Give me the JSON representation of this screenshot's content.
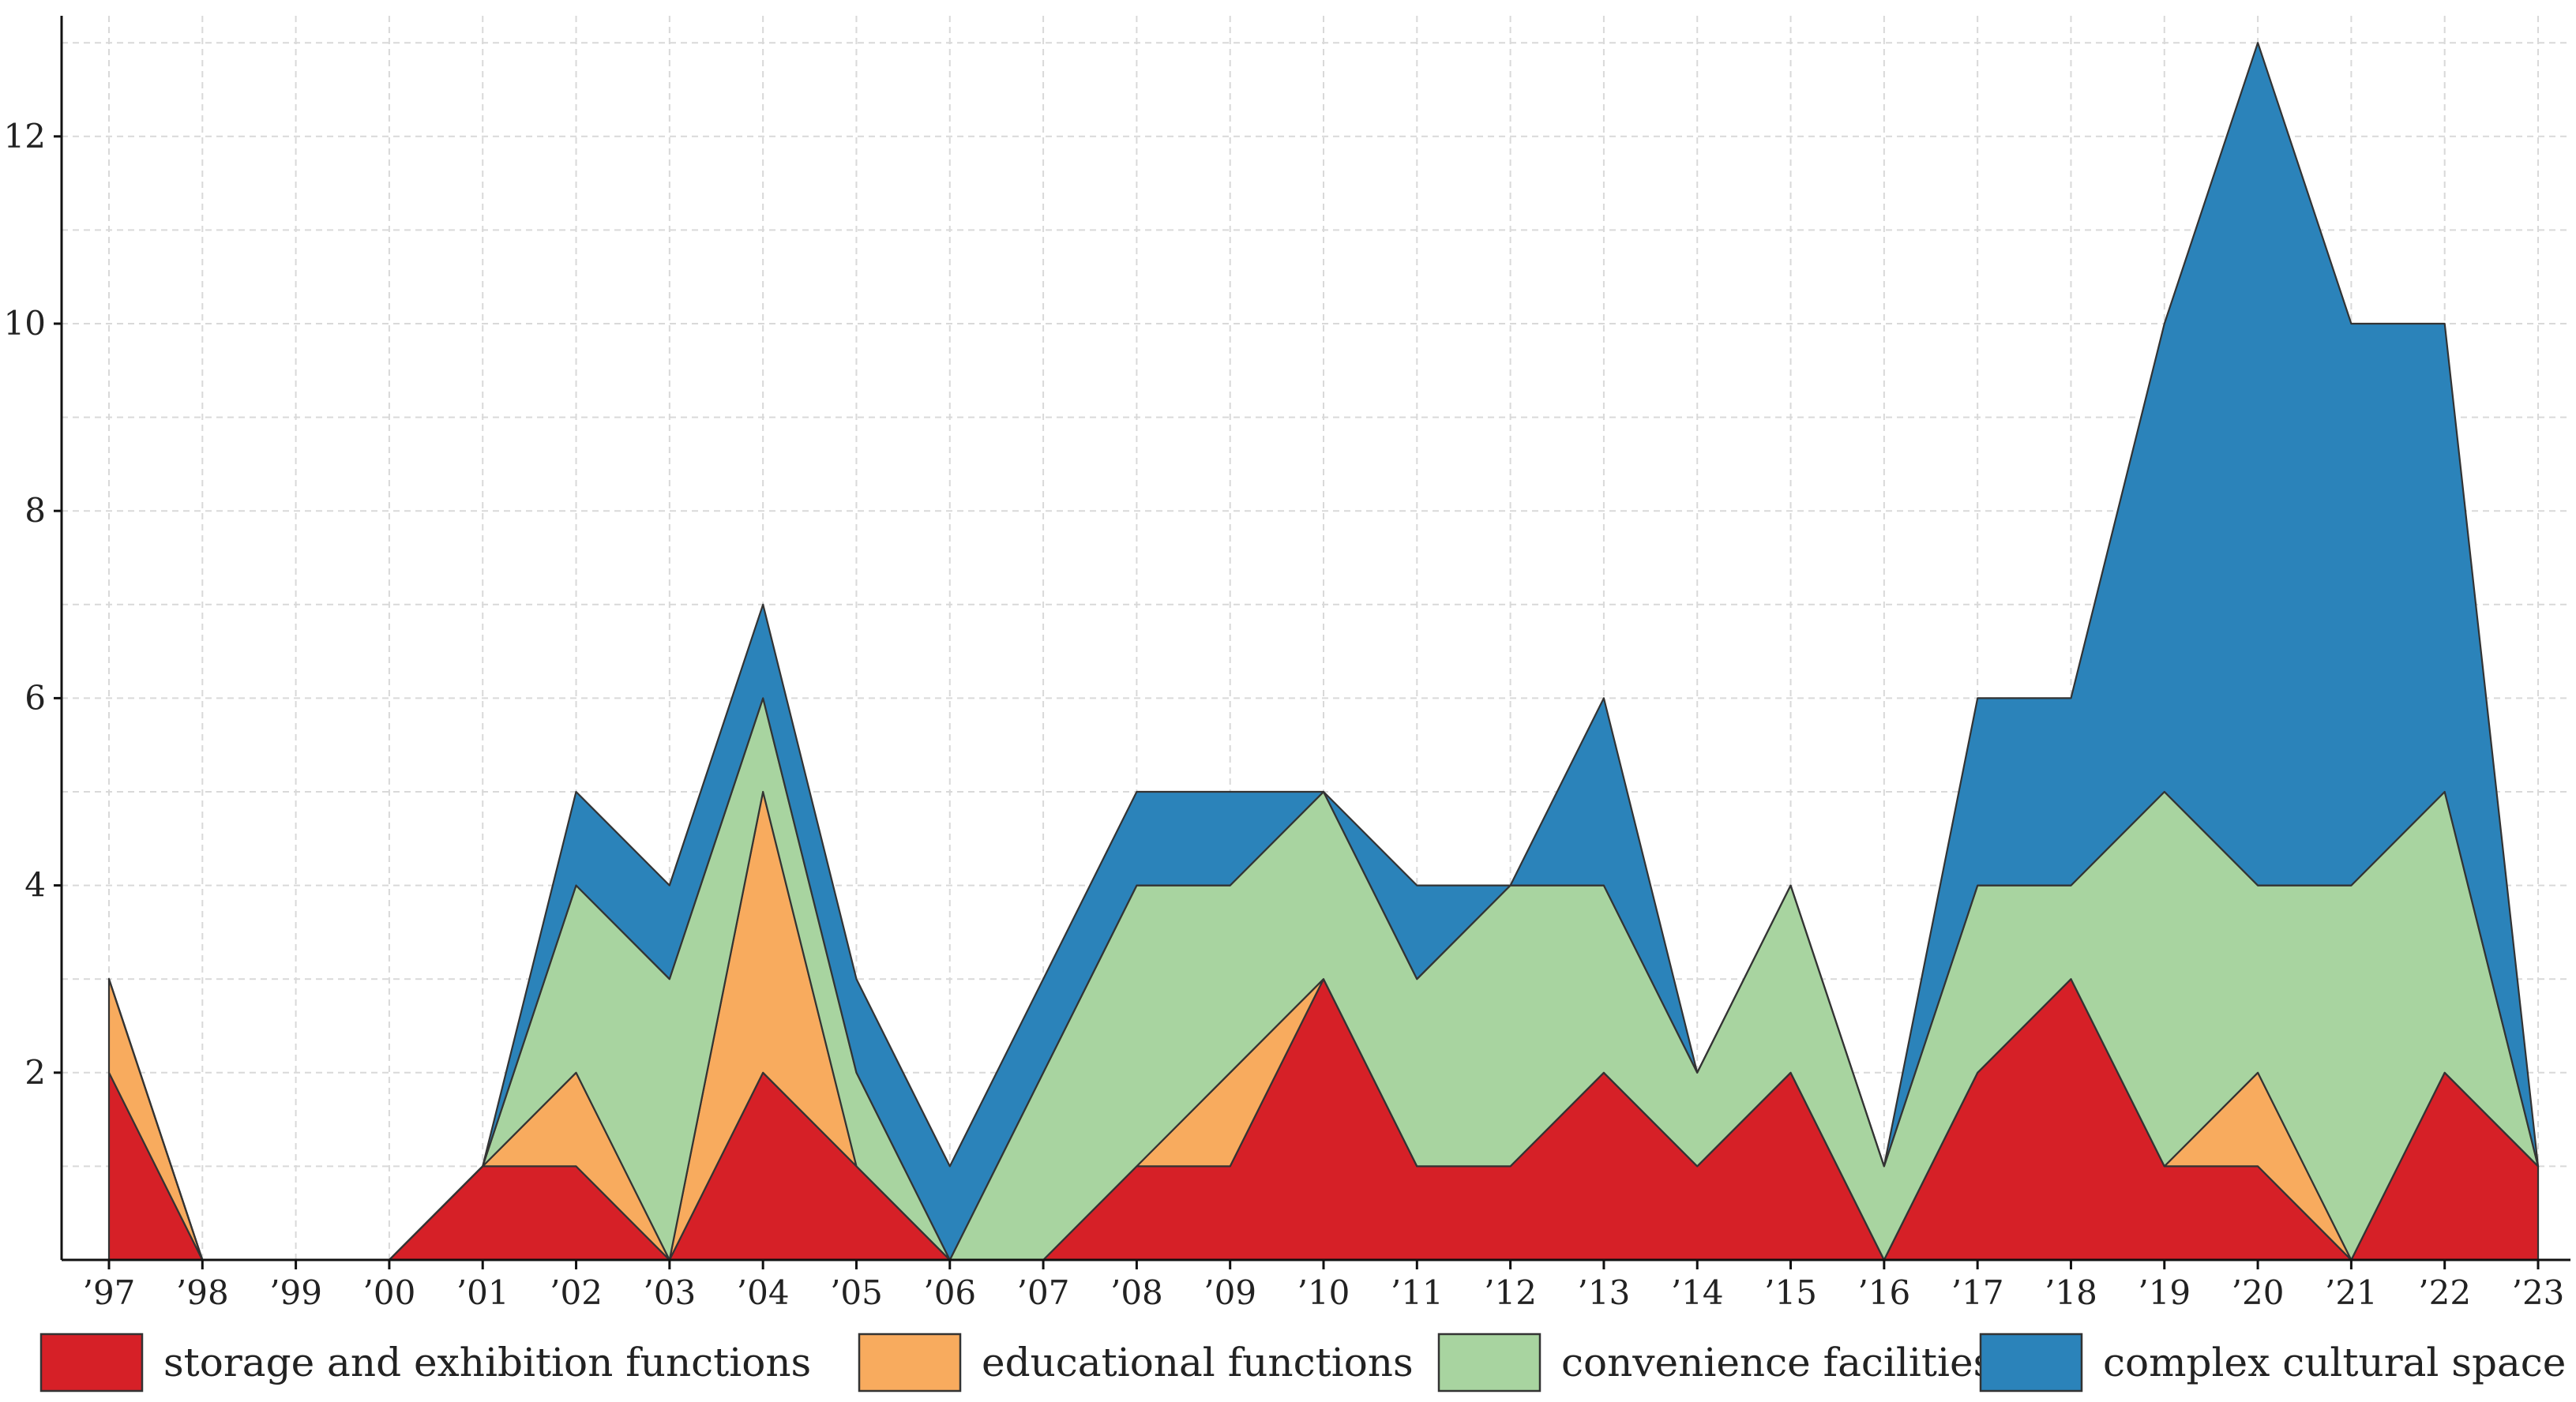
{
  "chart_data": {
    "type": "area",
    "stacked": true,
    "title": "",
    "xlabel": "",
    "ylabel": "",
    "ylim": [
      0,
      13.3
    ],
    "grid": true,
    "legend_position": "bottom",
    "categories": [
      "’97",
      "’98",
      "’99",
      "’00",
      "’01",
      "’02",
      "’03",
      "’04",
      "’05",
      "’06",
      "’07",
      "’08",
      "’09",
      "’10",
      "’11",
      "’12",
      "’13",
      "’14",
      "’15",
      "’16",
      "’17",
      "’18",
      "’19",
      "’20",
      "’21",
      "’22",
      "’23"
    ],
    "y_ticks": [
      2,
      4,
      6,
      8,
      10,
      12
    ],
    "series": [
      {
        "name": "storage and exhibition functions",
        "color": "#d62027",
        "values": [
          2,
          0,
          0,
          0,
          1,
          1,
          0,
          2,
          1,
          0,
          0,
          1,
          1,
          3,
          1,
          1,
          2,
          1,
          2,
          0,
          2,
          3,
          1,
          1,
          0,
          2,
          1
        ]
      },
      {
        "name": "educational functions",
        "color": "#f8ab5e",
        "values": [
          1,
          0,
          0,
          0,
          0,
          1,
          0,
          3,
          0,
          0,
          0,
          0,
          1,
          0,
          0,
          0,
          0,
          0,
          0,
          0,
          0,
          0,
          0,
          1,
          0,
          0,
          0
        ]
      },
      {
        "name": "convenience facilities",
        "color": "#a8d4a0",
        "values": [
          0,
          0,
          0,
          0,
          0,
          2,
          3,
          1,
          1,
          0,
          2,
          3,
          2,
          2,
          2,
          3,
          2,
          1,
          2,
          1,
          2,
          1,
          4,
          2,
          4,
          3,
          0
        ]
      },
      {
        "name": "complex cultural space",
        "color": "#2b83ba",
        "values": [
          0,
          0,
          0,
          0,
          0,
          1,
          1,
          1,
          1,
          1,
          1,
          1,
          1,
          0,
          1,
          0,
          2,
          0,
          0,
          0,
          2,
          2,
          5,
          9,
          6,
          5,
          0
        ]
      }
    ]
  }
}
